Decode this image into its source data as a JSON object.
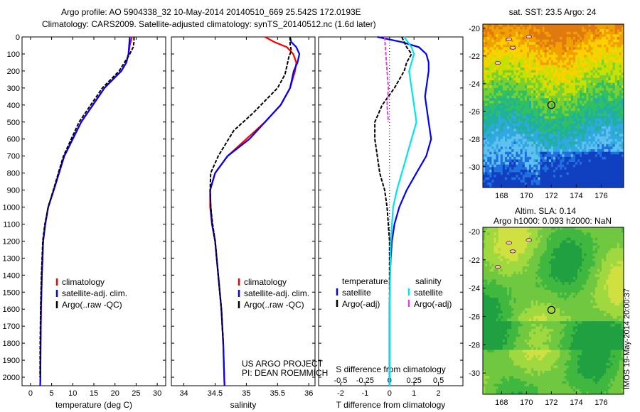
{
  "header": {
    "line1": "Argo profile: AO 5904338_32 10-May-2014 20140510_669 25.542S 172.0193E",
    "line2": "Climatology: CARS2009. Satellite-adjusted climatology: synTS_20140512.nc (1.6d later)"
  },
  "side_text": "IMOS 19-May-2014 20:00:37",
  "colors": {
    "climatology": "#ff0000",
    "satellite": "#0000ff",
    "argo": "#000000",
    "salinity_satellite": "#00e5e5",
    "salinity_argo": "#e040e0"
  },
  "chart_data": [
    {
      "type": "line",
      "xlabel": "temperature (deg C)",
      "ylim": [
        2050,
        0
      ],
      "xlim": [
        -2,
        32
      ],
      "xticks": [
        "0",
        "5",
        "10",
        "15",
        "20",
        "25",
        "30"
      ],
      "yticks": [
        "0",
        "100",
        "200",
        "300",
        "400",
        "500",
        "600",
        "700",
        "800",
        "900",
        "1000",
        "1100",
        "1200",
        "1300",
        "1400",
        "1500",
        "1600",
        "1700",
        "1800",
        "1900",
        "2000"
      ],
      "legend": [
        "climatology",
        "satellite-adj. clim.",
        "Argo(..raw -QC)"
      ],
      "series": [
        {
          "name": "climatology",
          "color": "#ff0000",
          "x": [
            24,
            23.5,
            23.2,
            22.7,
            21.5,
            17.5,
            12,
            8,
            5.5,
            4.2,
            3.5,
            3.0,
            2.7,
            2.5,
            2.4,
            2.35,
            2.3
          ],
          "y": [
            0,
            50,
            100,
            150,
            200,
            300,
            500,
            700,
            900,
            1000,
            1100,
            1200,
            1400,
            1600,
            1800,
            2000,
            2050
          ]
        },
        {
          "name": "satellite-adj. clim.",
          "color": "#0000ff",
          "x": [
            23.5,
            23.2,
            22.7,
            21.5,
            17.5,
            12,
            8,
            5.5,
            4.2,
            3.5,
            3.0,
            2.7,
            2.5,
            2.4,
            2.35,
            2.3
          ],
          "y": [
            0,
            100,
            150,
            200,
            300,
            500,
            700,
            900,
            1000,
            1100,
            1200,
            1400,
            1600,
            1800,
            2000,
            2050
          ]
        },
        {
          "name": "Argo(..raw -QC)",
          "color": "#000000",
          "x": [
            24.5,
            24.5,
            24.3,
            23.5,
            21,
            17,
            11.5,
            7.8,
            5.4,
            4.2,
            3.4,
            2.9,
            2.6,
            2.4,
            2.3,
            2.25
          ],
          "y": [
            0,
            30,
            60,
            100,
            200,
            300,
            500,
            700,
            900,
            1000,
            1100,
            1200,
            1400,
            1600,
            1800,
            2000
          ]
        }
      ]
    },
    {
      "type": "line",
      "xlabel": "salinity",
      "ylim": [
        2050,
        0
      ],
      "xlim": [
        33.8,
        36.1
      ],
      "xticks": [
        "34",
        "34.5",
        "35",
        "35.5",
        "36"
      ],
      "legend": [
        "climatology",
        "satellite-adj. clim.",
        "Argo(..raw -QC)"
      ],
      "annotation": [
        "US ARGO PROJECT",
        "PI: DEAN ROEMMICH"
      ],
      "series": [
        {
          "name": "climatology",
          "color": "#ff0000",
          "x": [
            35.3,
            35.45,
            35.65,
            35.75,
            35.8,
            35.78,
            35.7,
            35.55,
            35.3,
            35.0,
            34.7,
            34.5,
            34.42,
            34.42,
            34.45,
            34.5,
            34.55,
            34.6,
            34.63,
            34.65
          ],
          "y": [
            0,
            30,
            60,
            100,
            150,
            200,
            300,
            400,
            500,
            600,
            700,
            800,
            900,
            1000,
            1100,
            1200,
            1400,
            1600,
            1800,
            2050
          ]
        },
        {
          "name": "satellite-adj. clim.",
          "color": "#0000ff",
          "x": [
            35.7,
            35.72,
            35.8,
            35.85,
            35.82,
            35.76,
            35.7,
            35.55,
            35.3,
            35.05,
            34.7,
            34.5,
            34.42,
            34.43,
            34.45,
            34.5,
            34.55,
            34.6,
            34.63,
            34.65
          ],
          "y": [
            0,
            30,
            60,
            100,
            150,
            200,
            300,
            400,
            500,
            600,
            700,
            800,
            900,
            1000,
            1100,
            1200,
            1400,
            1600,
            1800,
            2050
          ]
        },
        {
          "name": "Argo(..raw -QC)",
          "color": "#000000",
          "x": [
            35.7,
            35.7,
            35.72,
            35.68,
            35.65,
            35.62,
            35.5,
            35.1,
            34.8,
            34.55,
            34.43,
            34.42,
            34.43,
            34.46,
            34.5,
            34.55,
            34.6,
            34.63
          ],
          "y": [
            0,
            40,
            80,
            120,
            170,
            220,
            300,
            450,
            550,
            700,
            800,
            900,
            1000,
            1100,
            1200,
            1400,
            1600,
            1800
          ]
        }
      ]
    },
    {
      "type": "line",
      "xlabel": "T difference from climatology",
      "xlabel2": "S difference from climatology",
      "ylim": [
        2050,
        0
      ],
      "xlim": [
        -2.9,
        3.0
      ],
      "xticks": [
        "-2",
        "-1",
        "0",
        "1",
        "2"
      ],
      "xticks2": [
        "-0.5",
        "-0.25",
        "0",
        "0.25",
        "0.5"
      ],
      "legend_left": [
        "temperature",
        "satellite",
        "Argo(-adj)"
      ],
      "legend_right": [
        "salinity",
        "satellite",
        "Argo(-adj)"
      ],
      "series": [
        {
          "name": "temperature satellite",
          "color": "#0000ff",
          "x": [
            -0.5,
            0.5,
            1.2,
            1.5,
            1.6,
            1.6,
            1.55,
            1.5,
            1.45,
            1.5,
            1.55,
            1.6,
            1.7,
            1.5,
            1.1,
            0.7,
            0.4,
            0.2,
            0.1,
            0.05,
            0.02,
            0.0,
            0.0
          ],
          "y": [
            0,
            30,
            60,
            100,
            150,
            200,
            250,
            300,
            350,
            400,
            450,
            500,
            600,
            700,
            800,
            900,
            1000,
            1100,
            1200,
            1300,
            1400,
            1600,
            2050
          ]
        },
        {
          "name": "temperature Argo(-adj)",
          "color": "#000000",
          "x": [
            0.5,
            0.7,
            0.9,
            0.7,
            0.6,
            0.2,
            -0.3,
            -0.6,
            -0.6,
            -0.5,
            -0.4,
            -0.2,
            -0.1,
            0.0,
            0.0,
            0.0
          ],
          "y": [
            0,
            60,
            100,
            150,
            200,
            300,
            400,
            500,
            600,
            700,
            800,
            900,
            1000,
            1200,
            1600,
            2000
          ]
        },
        {
          "name": "salinity satellite",
          "color": "#00e5e5",
          "x": [
            0.6,
            0.9,
            1.0,
            0.8,
            0.9,
            1.0,
            1.1,
            0.9,
            0.7,
            0.5,
            0.3,
            0.15,
            0.05,
            0.0,
            0.0
          ],
          "y": [
            0,
            60,
            100,
            200,
            300,
            400,
            500,
            600,
            700,
            800,
            900,
            1000,
            1200,
            1600,
            2050
          ]
        },
        {
          "name": "salinity Argo(-adj)",
          "color": "#e040e0",
          "x": [
            -0.2,
            -0.15,
            -0.1,
            -0.05,
            -0.1,
            -0.05
          ],
          "y": [
            0,
            100,
            200,
            300,
            400,
            500
          ]
        }
      ]
    },
    {
      "type": "heatmap",
      "title": "sat. SST: 23.5 Argo: 24",
      "xticks": [
        "168",
        "170",
        "172",
        "174",
        "176"
      ],
      "yticks": [
        "-20",
        "-22",
        "-24",
        "-26",
        "-28",
        "-30"
      ],
      "xlim": [
        166.5,
        177.8
      ],
      "ylim": [
        -31.5,
        -19.7
      ],
      "marker": [
        172.0,
        -25.54
      ]
    },
    {
      "type": "heatmap",
      "title": "Altim. SLA: 0.14",
      "subtitle": "Argo h1000: 0.093 h2000: NaN",
      "xticks": [
        "168",
        "170",
        "172",
        "174",
        "176"
      ],
      "yticks": [
        "-20",
        "-22",
        "-24",
        "-26",
        "-28",
        "-30"
      ],
      "xlim": [
        166.5,
        177.8
      ],
      "ylim": [
        -31.5,
        -19.7
      ],
      "marker": [
        172.0,
        -25.54
      ]
    }
  ]
}
